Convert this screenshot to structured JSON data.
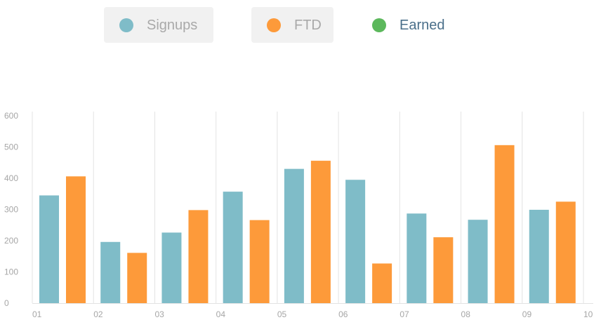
{
  "legend": {
    "items": [
      {
        "label": "Signups",
        "color": "#7fbcc8",
        "state": "off"
      },
      {
        "label": "FTD",
        "color": "#fd9a3a",
        "state": "off"
      },
      {
        "label": "Earned",
        "color": "#5cb85c",
        "state": "on"
      }
    ]
  },
  "chart_data": {
    "type": "bar",
    "categories": [
      "01",
      "02",
      "03",
      "04",
      "05",
      "06",
      "07",
      "08",
      "09"
    ],
    "x_ticks": [
      "01",
      "02",
      "03",
      "04",
      "05",
      "06",
      "07",
      "08",
      "09",
      "10"
    ],
    "y_ticks": [
      "0",
      "100",
      "200",
      "300",
      "400",
      "500",
      "600"
    ],
    "ylim": [
      0,
      600
    ],
    "grid": "vertical",
    "legend_position": "top",
    "series": [
      {
        "name": "Signups",
        "color": "#7fbcc8",
        "values": [
          345,
          196,
          226,
          357,
          430,
          395,
          287,
          267,
          299
        ]
      },
      {
        "name": "FTD",
        "color": "#fd9a3a",
        "values": [
          406,
          161,
          298,
          266,
          456,
          127,
          211,
          506,
          325
        ]
      }
    ]
  }
}
